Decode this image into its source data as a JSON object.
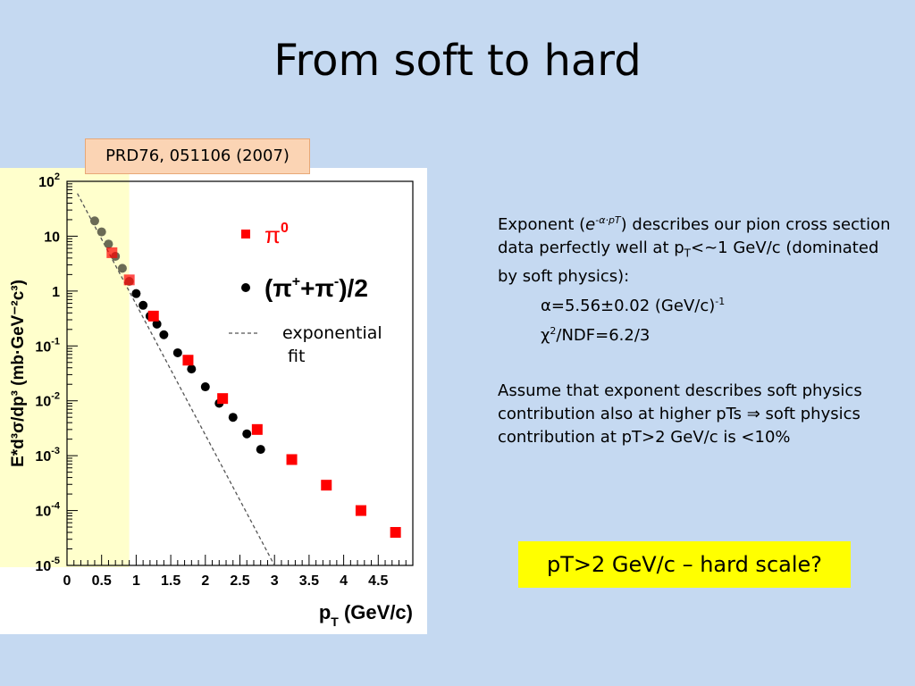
{
  "slide": {
    "title": "From soft to hard",
    "reference": "PRD76, 051106 (2007)",
    "fit_label": "exponential\n fit",
    "desc": {
      "p1_a": "Exponent (",
      "p1_exp_e": "e",
      "p1_exp_sup": "-α·pT",
      "p1_b": ") describes our pion cross section data perfectly well at p",
      "p1_sub": "T",
      "p1_c": "<~1 GeV/c (dominated by soft physics):",
      "alpha_line": "α=5.56±0.02 (GeV/c)",
      "alpha_sup": "-1",
      "chi_a": "χ",
      "chi_sup": "2",
      "chi_b": "/NDF=6.2/3",
      "p2": "Assume that exponent describes soft physics contribution also at higher pTs ⇒ soft physics contribution at pT>2 GeV/c is <10%"
    },
    "callout": "pT>2 GeV/c – hard scale?"
  },
  "chart_data": {
    "type": "scatter",
    "x_label": "p",
    "x_label_sub": "T",
    "x_label_unit": " (GeV/c)",
    "y_label": "E*d³σ/dp³ (mb·GeV⁻²c³)",
    "xlim": [
      0,
      5
    ],
    "ylim_log10": [
      -5,
      2
    ],
    "y_scale": "log",
    "x_ticks": [
      "0",
      "0.5",
      "1",
      "1.5",
      "2",
      "2.5",
      "3",
      "3.5",
      "4",
      "4.5"
    ],
    "y_ticks": [
      {
        "base": "10",
        "exp": "2"
      },
      {
        "base": "10",
        "exp": ""
      },
      {
        "base": "1",
        "exp": ""
      },
      {
        "base": "10",
        "exp": "-1"
      },
      {
        "base": "10",
        "exp": "-2"
      },
      {
        "base": "10",
        "exp": "-3"
      },
      {
        "base": "10",
        "exp": "-4"
      },
      {
        "base": "10",
        "exp": "-5"
      }
    ],
    "soft_region_max_x": 0.9,
    "colors": {
      "pi0": "#ff0000",
      "pich": "#000000",
      "soft_band": "#ffffcc"
    },
    "legend": [
      {
        "marker": "square",
        "label": "π",
        "sup": "0"
      },
      {
        "marker": "circle",
        "label": "(π",
        "sup": "+",
        "label2": "+π",
        "sup2": "-",
        "label3": ")/2"
      }
    ],
    "series": [
      {
        "name": "π⁰",
        "marker": "square",
        "x": [
          0.65,
          0.9,
          1.25,
          1.75,
          2.25,
          2.75,
          3.25,
          3.75,
          4.25,
          4.75
        ],
        "y": [
          5,
          1.6,
          0.35,
          0.055,
          0.011,
          0.003,
          0.00085,
          0.00029,
          0.0001,
          4e-05
        ]
      },
      {
        "name": "(π⁺+π⁻)/2",
        "marker": "circle",
        "x": [
          0.4,
          0.5,
          0.6,
          0.7,
          0.8,
          0.9,
          1.0,
          1.1,
          1.2,
          1.3,
          1.4,
          1.6,
          1.8,
          2.0,
          2.2,
          2.4,
          2.6,
          2.8
        ],
        "y": [
          19,
          12,
          7.2,
          4.3,
          2.6,
          1.5,
          0.9,
          0.55,
          0.35,
          0.25,
          0.16,
          0.075,
          0.038,
          0.018,
          0.009,
          0.005,
          0.0025,
          0.0013
        ]
      }
    ],
    "fit": {
      "style": "dashed",
      "x": [
        0.15,
        3.0
      ],
      "y": [
        60,
        1e-05
      ]
    }
  }
}
